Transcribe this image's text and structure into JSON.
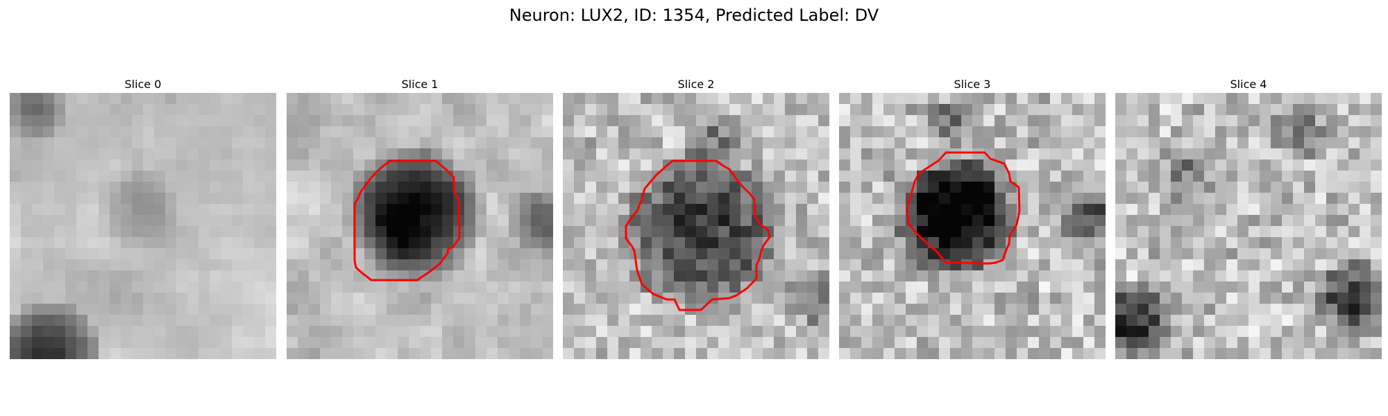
{
  "figure": {
    "title": "Neuron: LUX2, ID: 1354, Predicted Label: DV"
  },
  "slices": [
    {
      "title": "Slice 0",
      "has_contour": false
    },
    {
      "title": "Slice 1",
      "has_contour": true
    },
    {
      "title": "Slice 2",
      "has_contour": true
    },
    {
      "title": "Slice 3",
      "has_contour": true
    },
    {
      "title": "Slice 4",
      "has_contour": false
    }
  ],
  "colors": {
    "contour": "#ff0000",
    "background": "#ffffff"
  }
}
